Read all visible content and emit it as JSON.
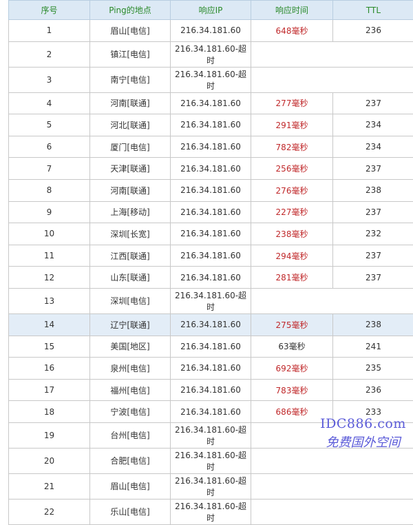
{
  "headers": [
    "序号",
    "Ping的地点",
    "响应IP",
    "响应时间",
    "TTL"
  ],
  "rows": [
    {
      "n": "1",
      "loc": "眉山[电信]",
      "ip": "216.34.181.60",
      "time": "648毫秒",
      "ttl": "236",
      "slow": true
    },
    {
      "n": "2",
      "loc": "镇江[电信]",
      "ip": "216.34.181.60-超时"
    },
    {
      "n": "3",
      "loc": "南宁[电信]",
      "ip": "216.34.181.60-超时"
    },
    {
      "n": "4",
      "loc": "河南[联通]",
      "ip": "216.34.181.60",
      "time": "277毫秒",
      "ttl": "237",
      "slow": true
    },
    {
      "n": "5",
      "loc": "河北[联通]",
      "ip": "216.34.181.60",
      "time": "291毫秒",
      "ttl": "234",
      "slow": true
    },
    {
      "n": "6",
      "loc": "厦门[电信]",
      "ip": "216.34.181.60",
      "time": "782毫秒",
      "ttl": "234",
      "slow": true
    },
    {
      "n": "7",
      "loc": "天津[联通]",
      "ip": "216.34.181.60",
      "time": "256毫秒",
      "ttl": "237",
      "slow": true
    },
    {
      "n": "8",
      "loc": "河南[联通]",
      "ip": "216.34.181.60",
      "time": "276毫秒",
      "ttl": "238",
      "slow": true
    },
    {
      "n": "9",
      "loc": "上海[移动]",
      "ip": "216.34.181.60",
      "time": "227毫秒",
      "ttl": "237",
      "slow": true
    },
    {
      "n": "10",
      "loc": "深圳[长宽]",
      "ip": "216.34.181.60",
      "time": "238毫秒",
      "ttl": "232",
      "slow": true
    },
    {
      "n": "11",
      "loc": "江西[联通]",
      "ip": "216.34.181.60",
      "time": "294毫秒",
      "ttl": "237",
      "slow": true
    },
    {
      "n": "12",
      "loc": "山东[联通]",
      "ip": "216.34.181.60",
      "time": "281毫秒",
      "ttl": "237",
      "slow": true
    },
    {
      "n": "13",
      "loc": "深圳[电信]",
      "ip": "216.34.181.60-超时"
    },
    {
      "n": "14",
      "loc": "辽宁[联通]",
      "ip": "216.34.181.60",
      "time": "275毫秒",
      "ttl": "238",
      "slow": true,
      "highlight": true
    },
    {
      "n": "15",
      "loc": "美国[地区]",
      "ip": "216.34.181.60",
      "time": "63毫秒",
      "ttl": "241",
      "slow": false
    },
    {
      "n": "16",
      "loc": "泉州[电信]",
      "ip": "216.34.181.60",
      "time": "692毫秒",
      "ttl": "235",
      "slow": true
    },
    {
      "n": "17",
      "loc": "福州[电信]",
      "ip": "216.34.181.60",
      "time": "783毫秒",
      "ttl": "236",
      "slow": true
    },
    {
      "n": "18",
      "loc": "宁波[电信]",
      "ip": "216.34.181.60",
      "time": "686毫秒",
      "ttl": "233",
      "slow": true
    },
    {
      "n": "19",
      "loc": "台州[电信]",
      "ip": "216.34.181.60-超时"
    },
    {
      "n": "20",
      "loc": "合肥[电信]",
      "ip": "216.34.181.60-超时"
    },
    {
      "n": "21",
      "loc": "眉山[电信]",
      "ip": "216.34.181.60-超时"
    },
    {
      "n": "22",
      "loc": "乐山[电信]",
      "ip": "216.34.181.60-超时"
    }
  ],
  "colors": {
    "header_bg": "#dce9f5",
    "header_text": "#2a8a2a",
    "slow_time": "#c0282a",
    "highlight_row": "#e3edf7"
  },
  "watermark": {
    "line1": "IDC886.com",
    "line2": "免费国外空间"
  }
}
